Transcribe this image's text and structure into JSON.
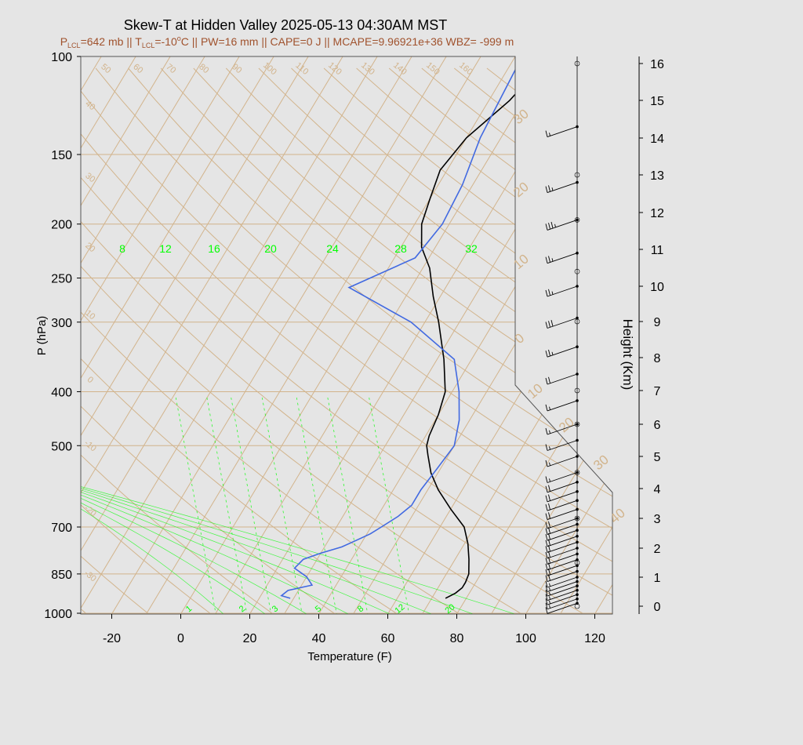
{
  "title": "Skew-T at Hidden Valley 2025-05-13 04:30AM MST",
  "subtitle": {
    "p_lcl": "=642 mb",
    "t_lcl": "=-10",
    "t_lcl_unit": "C",
    "rest": " || PW=16 mm || CAPE=0 J || MCAPE=9.96921e+36 WBZ= -999 m",
    "p_label": "P",
    "t_label": "T",
    "lcl_sub": "LCL",
    "sep": " || ",
    "deg": "o"
  },
  "colors": {
    "title": "#000000",
    "subtitle": "#a0522d",
    "isotherm": "#d2b48c",
    "mixing_ratio": "#00ff00",
    "temperature": "#000000",
    "dewpoint": "#4169e1",
    "background": "#e5e5e5"
  },
  "chart_data": {
    "type": "line",
    "title": "Skew-T at Hidden Valley 2025-05-13 04:30AM MST",
    "xlabel": "Temperature (F)",
    "ylabel": "P (hPa)",
    "y2label": "Height (Km)",
    "xlim": [
      -28,
      125
    ],
    "ylim": [
      1025,
      100
    ],
    "y_scale": "log",
    "x_ticks": [
      -20,
      0,
      20,
      40,
      60,
      80,
      100,
      120
    ],
    "p_ticks": [
      100,
      150,
      200,
      250,
      300,
      400,
      500,
      700,
      850,
      1000
    ],
    "height_ticks": [
      0,
      1,
      2,
      3,
      4,
      5,
      6,
      7,
      8,
      9,
      10,
      11,
      12,
      13,
      14,
      15,
      16
    ],
    "isotherm_labels_left": [
      40,
      30,
      20,
      10,
      0,
      -10,
      -20,
      -30
    ],
    "isotherm_labels_top": [
      50,
      60,
      70,
      80,
      90,
      100,
      110,
      120,
      130,
      140,
      150,
      160
    ],
    "isotherm_labels_right": [
      30,
      20,
      10,
      0,
      10,
      20,
      30,
      40
    ],
    "mixing_ratio_top_labels": [
      "8",
      "12",
      "16",
      "20",
      "24",
      "28",
      "32"
    ],
    "mixing_ratio_bottom_labels": [
      "1",
      "2",
      "3",
      "5",
      "8",
      "12",
      "20"
    ],
    "series": [
      {
        "key": "temperature",
        "pressure": [
          940,
          920,
          900,
          880,
          850,
          800,
          750,
          700,
          650,
          600,
          560,
          520,
          500,
          480,
          440,
          400,
          350,
          300,
          270,
          240,
          220,
          200,
          180,
          160,
          140,
          120,
          100
        ],
        "temp_f": [
          74,
          76,
          77,
          77,
          76.5,
          74,
          71,
          67,
          60,
          53,
          48,
          44,
          42,
          41,
          40,
          38,
          32,
          24,
          18,
          12,
          6,
          2,
          0,
          -2,
          0,
          6,
          10
        ]
      },
      {
        "key": "dewpoint",
        "pressure": [
          940,
          930,
          910,
          890,
          860,
          830,
          800,
          780,
          760,
          740,
          720,
          700,
          670,
          640,
          600,
          550,
          500,
          450,
          400,
          350,
          300,
          260,
          230,
          200,
          170,
          140,
          100
        ],
        "temp_f": [
          29,
          26,
          27,
          33,
          30,
          25,
          26,
          30,
          35,
          38,
          41,
          43,
          46,
          48,
          48,
          49,
          50,
          47,
          42,
          35,
          16,
          -8,
          6,
          8,
          7,
          4,
          2
        ]
      }
    ],
    "wind_heights_km": [
      0.1,
      0.25,
      0.4,
      0.55,
      0.7,
      0.85,
      1.0,
      1.2,
      1.4,
      1.6,
      1.8,
      2.0,
      2.2,
      2.4,
      2.6,
      2.8,
      3.0,
      3.3,
      3.6,
      3.9,
      4.2,
      4.5,
      5.0,
      5.5,
      6.0,
      6.7,
      7.5,
      8.3,
      9.1,
      10.0,
      10.9,
      11.8,
      12.8,
      14.3
    ],
    "wind_speeds_kt": [
      10,
      15,
      15,
      15,
      15,
      15,
      15,
      20,
      20,
      20,
      20,
      20,
      20,
      20,
      20,
      20,
      20,
      20,
      20,
      20,
      20,
      15,
      15,
      15,
      15,
      15,
      20,
      25,
      30,
      25,
      25,
      35,
      25,
      15
    ]
  }
}
